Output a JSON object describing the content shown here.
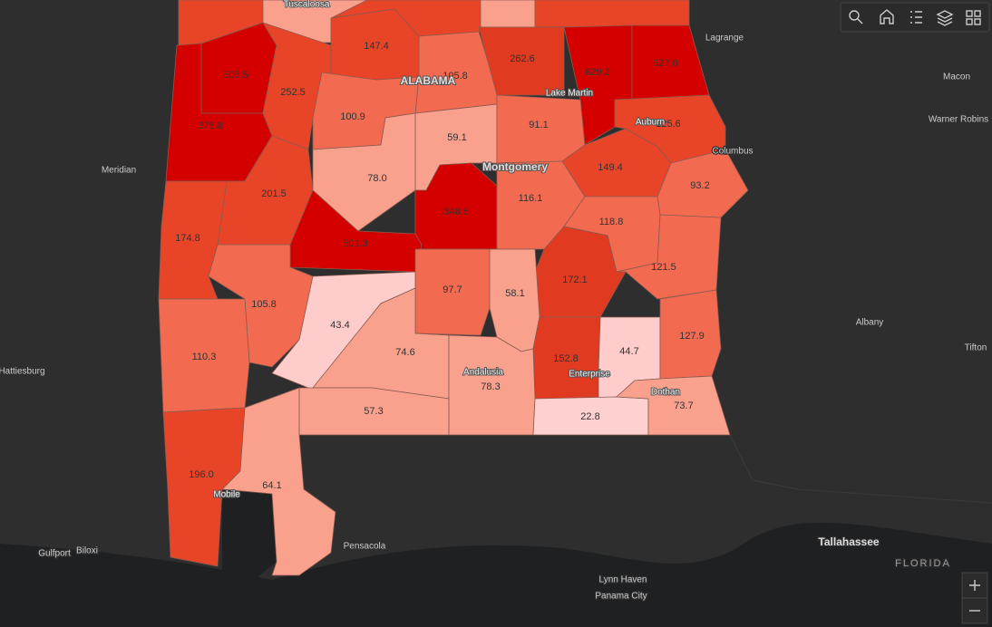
{
  "counties": [
    {
      "value": 505.5,
      "label": "505.5",
      "color": "#d40000"
    },
    {
      "value": 378.8,
      "label": "378.8",
      "color": "#d40000"
    },
    {
      "value": 252.5,
      "label": "252.5",
      "color": "#e84428"
    },
    {
      "value": 147.4,
      "label": "147.4",
      "color": "#e84428"
    },
    {
      "value": 105.8,
      "label": "105.8",
      "color": "#f26a50"
    },
    {
      "value": 262.6,
      "label": "262.6",
      "color": "#e03a20"
    },
    {
      "value": 629.2,
      "label": "629.2",
      "color": "#d40000"
    },
    {
      "value": 627.0,
      "label": "627.0",
      "color": "#d40000"
    },
    {
      "value": 100.9,
      "label": "100.9",
      "color": "#f26a50"
    },
    {
      "value": 59.1,
      "label": "59.1",
      "color": "#f9a18c"
    },
    {
      "value": 91.1,
      "label": "91.1",
      "color": "#f26a50"
    },
    {
      "value": 125.6,
      "label": "125.6",
      "color": "#e84428"
    },
    {
      "value": 149.4,
      "label": "149.4",
      "color": "#e84428"
    },
    {
      "value": 93.2,
      "label": "93.2",
      "color": "#f26a50"
    },
    {
      "value": 201.5,
      "label": "201.5",
      "color": "#e84428"
    },
    {
      "value": 78.0,
      "label": "78.0",
      "color": "#f9a18c"
    },
    {
      "value": 348.6,
      "label": "348.6",
      "color": "#d40000"
    },
    {
      "value": 116.1,
      "label": "116.1",
      "color": "#f26a50"
    },
    {
      "value": 118.8,
      "label": "118.8",
      "color": "#f26a50"
    },
    {
      "value": 501.3,
      "label": "501.3",
      "color": "#d40000"
    },
    {
      "value": 174.8,
      "label": "174.8",
      "color": "#e84428"
    },
    {
      "value": 121.5,
      "label": "121.5",
      "color": "#f26a50"
    },
    {
      "value": 172.1,
      "label": "172.1",
      "color": "#e03a20"
    },
    {
      "value": 97.7,
      "label": "97.7",
      "color": "#f26a50"
    },
    {
      "value": 58.1,
      "label": "58.1",
      "color": "#f9a18c"
    },
    {
      "value": 105.8,
      "label": "105.8",
      "color": "#f26a50"
    },
    {
      "value": 43.4,
      "label": "43.4",
      "color": "#ffcccc"
    },
    {
      "value": 74.6,
      "label": "74.6",
      "color": "#f9a18c"
    },
    {
      "value": 110.3,
      "label": "110.3",
      "color": "#f26a50"
    },
    {
      "value": 152.8,
      "label": "152.8",
      "color": "#e03a20"
    },
    {
      "value": 44.7,
      "label": "44.7",
      "color": "#ffcccc"
    },
    {
      "value": 127.9,
      "label": "127.9",
      "color": "#f26a50"
    },
    {
      "value": 78.3,
      "label": "78.3",
      "color": "#f9a18c"
    },
    {
      "value": 57.3,
      "label": "57.3",
      "color": "#f9a18c"
    },
    {
      "value": 22.8,
      "label": "22.8",
      "color": "#ffd0d0"
    },
    {
      "value": 73.7,
      "label": "73.7",
      "color": "#f9a18c"
    },
    {
      "value": 196.0,
      "label": "196.0",
      "color": "#e84428"
    },
    {
      "value": 64.1,
      "label": "64.1",
      "color": "#f9a18c"
    }
  ],
  "places": [
    "Tuscaloosa",
    "ALABAMA",
    "Lake Martin",
    "Montgomery",
    "Auburn",
    "Columbus",
    "Lagrange",
    "Macon",
    "Warner Robins",
    "Meridian",
    "Hattiesburg",
    "Albany",
    "Tifton",
    "Andalusia",
    "Enterprise",
    "Dothan",
    "Mobile",
    "Gulfport",
    "Biloxi",
    "Pensacola",
    "Lynn Haven",
    "Panama City",
    "Tallahassee",
    "FLORIDA"
  ]
}
